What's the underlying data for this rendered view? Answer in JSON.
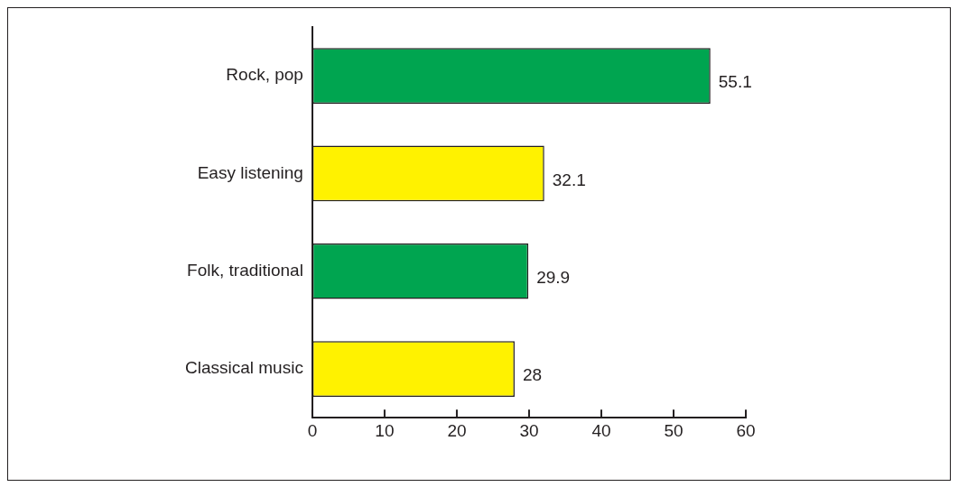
{
  "chart_data": {
    "type": "bar",
    "orientation": "horizontal",
    "categories": [
      "Rock, pop",
      "Easy listening",
      "Folk, traditional",
      "Classical music"
    ],
    "values": [
      55.1,
      32.1,
      29.9,
      28
    ],
    "colors": [
      "#00a550",
      "#fff200",
      "#00a550",
      "#fff200"
    ],
    "xlim": [
      0,
      60
    ],
    "xticks": [
      0,
      10,
      20,
      30,
      40,
      50,
      60
    ],
    "data_labels": true,
    "grid": false,
    "legend": false
  }
}
